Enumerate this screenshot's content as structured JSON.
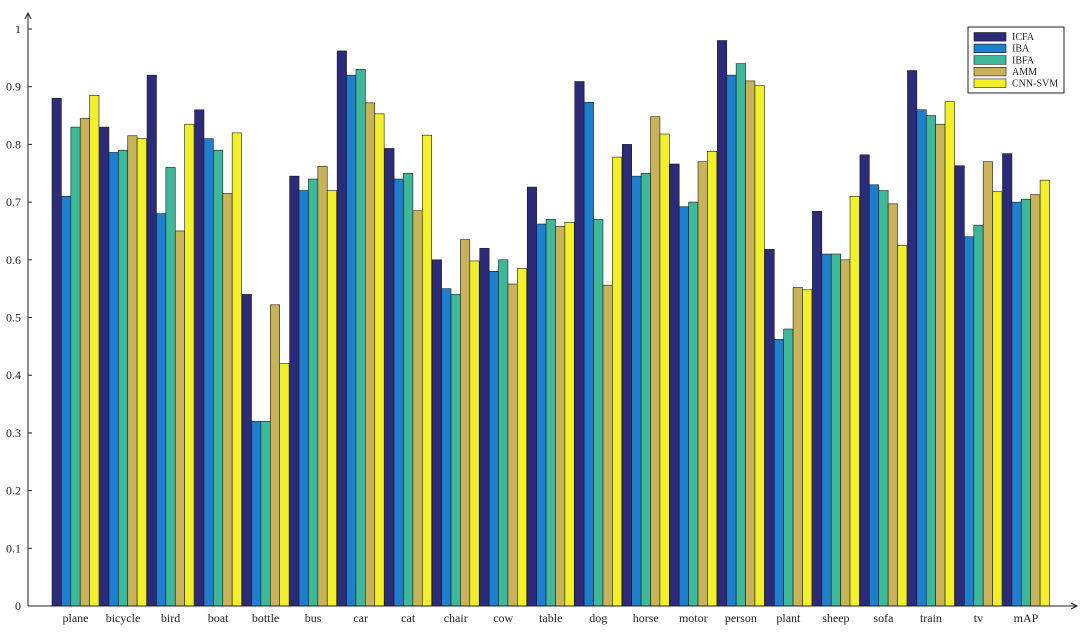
{
  "chart_data": {
    "type": "bar",
    "title": "",
    "xlabel": "",
    "ylabel": "",
    "ylim": [
      0,
      1
    ],
    "yticks": [
      0,
      0.1,
      0.2,
      0.3,
      0.4,
      0.5,
      0.6,
      0.7,
      0.8,
      0.9,
      1
    ],
    "ytick_labels": [
      "0",
      "0.1",
      "0.2",
      "0.3",
      "0.4",
      "0.5",
      "0.6",
      "0.7",
      "0.8",
      "0.9",
      "1"
    ],
    "grid": false,
    "legend_position": "top-right",
    "categories": [
      "plane",
      "bicycle",
      "bird",
      "boat",
      "bottle",
      "bus",
      "car",
      "cat",
      "chair",
      "cow",
      "table",
      "dog",
      "horse",
      "motor",
      "person",
      "plant",
      "sheep",
      "sofa",
      "train",
      "tv",
      "mAP"
    ],
    "series": [
      {
        "name": "ICFA",
        "color": "#2b2b7a",
        "values": [
          0.88,
          0.83,
          0.92,
          0.86,
          0.54,
          0.745,
          0.962,
          0.793,
          0.6,
          0.62,
          0.726,
          0.909,
          0.8,
          0.766,
          0.98,
          0.618,
          0.684,
          0.782,
          0.928,
          0.763,
          0.784
        ]
      },
      {
        "name": "IBA",
        "color": "#1f7fcf",
        "values": [
          0.71,
          0.786,
          0.68,
          0.81,
          0.32,
          0.72,
          0.92,
          0.74,
          0.55,
          0.58,
          0.662,
          0.873,
          0.745,
          0.692,
          0.92,
          0.462,
          0.61,
          0.73,
          0.86,
          0.64,
          0.7
        ]
      },
      {
        "name": "IBFA",
        "color": "#3db99a",
        "values": [
          0.83,
          0.79,
          0.76,
          0.79,
          0.32,
          0.74,
          0.93,
          0.75,
          0.54,
          0.6,
          0.67,
          0.67,
          0.75,
          0.7,
          0.94,
          0.48,
          0.61,
          0.72,
          0.85,
          0.66,
          0.705
        ]
      },
      {
        "name": "AMM",
        "color": "#c9b35a",
        "values": [
          0.845,
          0.815,
          0.65,
          0.715,
          0.522,
          0.762,
          0.872,
          0.685,
          0.635,
          0.558,
          0.658,
          0.556,
          0.848,
          0.77,
          0.91,
          0.552,
          0.6,
          0.697,
          0.835,
          0.77,
          0.713
        ]
      },
      {
        "name": "CNN-SVM",
        "color": "#f2f02a",
        "values": [
          0.885,
          0.81,
          0.835,
          0.82,
          0.42,
          0.72,
          0.853,
          0.816,
          0.598,
          0.585,
          0.665,
          0.778,
          0.818,
          0.788,
          0.902,
          0.548,
          0.71,
          0.625,
          0.874,
          0.718,
          0.738
        ]
      }
    ]
  }
}
